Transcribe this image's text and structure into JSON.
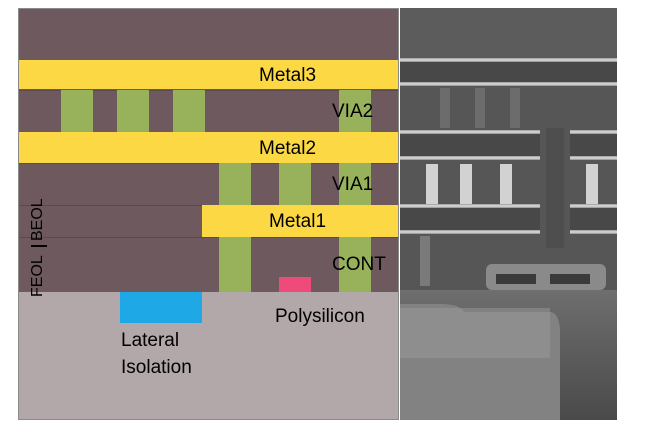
{
  "layers": {
    "metal3": "Metal3",
    "via2": "VIA2",
    "metal2": "Metal2",
    "via1": "VIA1",
    "metal1": "Metal1",
    "cont": "CONT",
    "polysilicon": "Polysilicon",
    "lateral_isolation": [
      "Lateral",
      "Isolation"
    ]
  },
  "regions": {
    "beol": "BEOL",
    "feol": "FEOL"
  },
  "colors": {
    "dielectric": "#6e5a5e",
    "metal": "#fcd944",
    "via": "#98b25c",
    "substrate": "#b2a8aa",
    "isolation": "#1ea8e6",
    "polysilicon": "#ee4a7a"
  }
}
